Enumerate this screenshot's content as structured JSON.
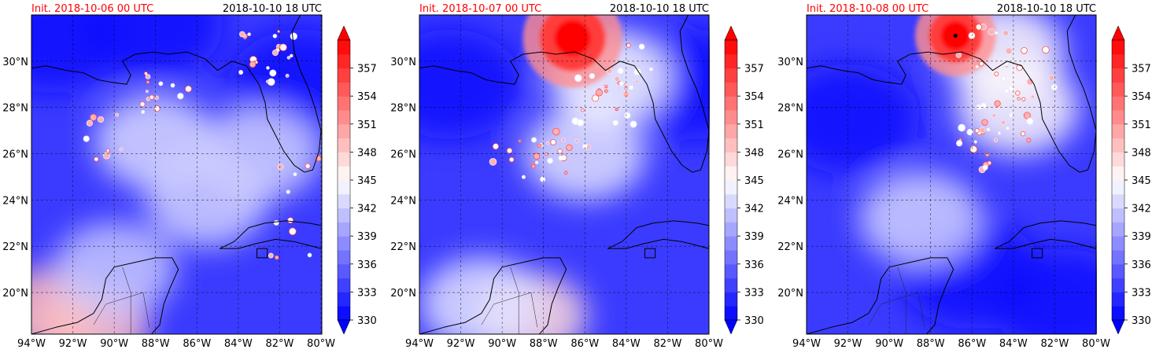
{
  "figure": {
    "panels": [
      {
        "init_label": "Init. 2018-10-06 00 UTC",
        "valid_label": "2018-10-10 18 UTC",
        "storm": null,
        "features": [
          {
            "kind": "warm-area",
            "lon": -93.2,
            "lat": 19.2,
            "intensity": 0.62
          },
          {
            "kind": "warm-area",
            "lon": -91.0,
            "lat": 18.6,
            "intensity": 0.55
          },
          {
            "kind": "cold-area",
            "lon": -81.0,
            "lat": 29.0,
            "intensity": 0.95
          },
          {
            "kind": "cold-area",
            "lon": -93.0,
            "lat": 31.0,
            "intensity": 0.9
          },
          {
            "kind": "cold-area",
            "lon": -88.2,
            "lat": 31.6,
            "intensity": 0.9
          },
          {
            "kind": "mid-area",
            "lon": -88.0,
            "lat": 26.5,
            "intensity": 0.5
          },
          {
            "kind": "mid-area",
            "lon": -85.5,
            "lat": 24.0,
            "intensity": 0.45
          },
          {
            "kind": "mid-area",
            "lon": -83.0,
            "lat": 26.0,
            "intensity": 0.45
          },
          {
            "kind": "mid-area",
            "lon": -90.0,
            "lat": 21.0,
            "intensity": 0.4
          }
        ],
        "convection": [
          {
            "lon": -82.6,
            "lat": 30.2,
            "n": 22
          },
          {
            "lon": -87.8,
            "lat": 28.5,
            "n": 14
          },
          {
            "lon": -90.5,
            "lat": 26.8,
            "n": 10
          },
          {
            "lon": -81.8,
            "lat": 22.5,
            "n": 6
          },
          {
            "lon": -81.0,
            "lat": 25.0,
            "n": 6
          }
        ]
      },
      {
        "init_label": "Init. 2018-10-07 00 UTC",
        "valid_label": "2018-10-10 18 UTC",
        "storm": {
          "lon": -86.6,
          "lat": 31.0,
          "radius_deg": 1.6,
          "intensity": 1.0
        },
        "features": [
          {
            "kind": "warm-area",
            "lon": -88.6,
            "lat": 19.0,
            "intensity": 0.35
          },
          {
            "kind": "cold-area",
            "lon": -92.5,
            "lat": 29.0,
            "intensity": 0.9
          },
          {
            "kind": "cold-area",
            "lon": -80.8,
            "lat": 29.0,
            "intensity": 0.85
          },
          {
            "kind": "mid-area",
            "lon": -86.0,
            "lat": 26.0,
            "intensity": 0.55
          },
          {
            "kind": "mid-area",
            "lon": -84.8,
            "lat": 29.3,
            "intensity": 0.7
          },
          {
            "kind": "mid-area",
            "lon": -91.0,
            "lat": 19.5,
            "intensity": 0.55
          }
        ],
        "convection": [
          {
            "lon": -85.0,
            "lat": 28.3,
            "n": 22
          },
          {
            "lon": -87.0,
            "lat": 26.2,
            "n": 18
          },
          {
            "lon": -89.0,
            "lat": 25.5,
            "n": 10
          },
          {
            "lon": -84.2,
            "lat": 29.6,
            "n": 10
          }
        ]
      },
      {
        "init_label": "Init. 2018-10-08 00 UTC",
        "valid_label": "2018-10-10 18 UTC",
        "storm": {
          "lon": -86.8,
          "lat": 31.1,
          "radius_deg": 1.3,
          "intensity": 1.0
        },
        "features": [
          {
            "kind": "cold-area",
            "lon": -92.0,
            "lat": 27.5,
            "intensity": 0.95
          },
          {
            "kind": "cold-area",
            "lon": -86.0,
            "lat": 20.8,
            "intensity": 0.9
          },
          {
            "kind": "cold-area",
            "lon": -81.5,
            "lat": 19.5,
            "intensity": 0.85
          },
          {
            "kind": "mid-area",
            "lon": -83.8,
            "lat": 28.0,
            "intensity": 0.75
          },
          {
            "kind": "mid-area",
            "lon": -84.5,
            "lat": 30.4,
            "intensity": 0.75
          },
          {
            "kind": "mid-area",
            "lon": -88.5,
            "lat": 23.2,
            "intensity": 0.45
          }
        ],
        "convection": [
          {
            "lon": -84.3,
            "lat": 27.6,
            "n": 20
          },
          {
            "lon": -86.0,
            "lat": 26.4,
            "n": 14
          },
          {
            "lon": -83.4,
            "lat": 29.5,
            "n": 12
          },
          {
            "lon": -85.5,
            "lat": 30.6,
            "n": 10
          }
        ]
      }
    ],
    "map": {
      "lon_min": -94,
      "lon_max": -80,
      "lat_min": 18.2,
      "lat_max": 32.0,
      "lon_ticks": [
        -94,
        -92,
        -90,
        -88,
        -86,
        -84,
        -82,
        -80
      ],
      "lon_tick_labels": [
        "94°W",
        "92°W",
        "90°W",
        "88°W",
        "86°W",
        "84°W",
        "82°W",
        "80°W"
      ],
      "lat_ticks": [
        20,
        22,
        24,
        26,
        28,
        30
      ],
      "lat_tick_labels": [
        "20°N",
        "22°N",
        "24°N",
        "26°N",
        "28°N",
        "30°N"
      ]
    },
    "colorbar": {
      "min": 330,
      "max": 360,
      "extend": "both",
      "ticks": [
        330,
        333,
        336,
        339,
        342,
        345,
        348,
        351,
        354,
        357
      ],
      "tick_labels": [
        "330",
        "333",
        "336",
        "339",
        "342",
        "345",
        "348",
        "351",
        "354",
        "357"
      ],
      "levels": 20,
      "colormap": "bwr",
      "color_low": "#0000ff",
      "color_mid": "#ffffff",
      "color_high": "#ff0000"
    },
    "colors": {
      "init_label": "#ff0000",
      "valid_label": "#000000",
      "coastline": "#000000",
      "gridline": "#000000"
    }
  }
}
